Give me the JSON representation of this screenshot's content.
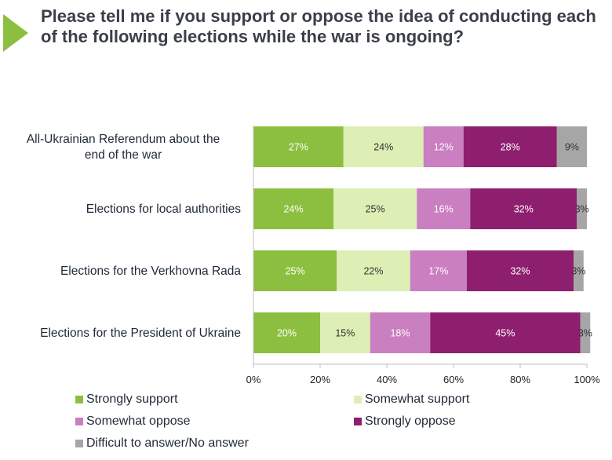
{
  "title": "Please tell me if you support or oppose the idea of conducting each of the following elections while the war is ongoing?",
  "chart_data": {
    "type": "bar",
    "orientation": "horizontal",
    "stacked": true,
    "normalized": true,
    "categories": [
      "All-Ukrainian Referendum about the end of the war",
      "Elections for local authorities",
      "Elections for the Verkhovna Rada",
      "Elections for the President of Ukraine"
    ],
    "category_label_lines": [
      [
        "All-Ukrainian Referendum about the",
        "end of the war"
      ],
      [
        "Elections for local authorities"
      ],
      [
        "Elections for the Verkhovna Rada"
      ],
      [
        "Elections for the President of Ukraine"
      ]
    ],
    "series": [
      {
        "name": "Strongly support",
        "color": "#8cbf3f",
        "label_color": "#ffffff",
        "values": [
          27,
          24,
          25,
          20
        ],
        "labels": [
          "27%",
          "24%",
          "25%",
          "20%"
        ]
      },
      {
        "name": "Somewhat support",
        "color": "#ddefb4",
        "label_color": "#333333",
        "values": [
          24,
          25,
          22,
          15
        ],
        "labels": [
          "24%",
          "25%",
          "22%",
          "15%"
        ]
      },
      {
        "name": "Somewhat oppose",
        "color": "#c97fc0",
        "label_color": "#ffffff",
        "values": [
          12,
          16,
          17,
          18
        ],
        "labels": [
          "12%",
          "16%",
          "17%",
          "18%"
        ]
      },
      {
        "name": "Strongly oppose",
        "color": "#8e1f6e",
        "label_color": "#ffffff",
        "values": [
          28,
          32,
          32,
          45
        ],
        "labels": [
          "28%",
          "32%",
          "32%",
          "45%"
        ]
      },
      {
        "name": "Difficult to answer/No answer",
        "color": "#a6a6a6",
        "label_color": "#333333",
        "values": [
          9,
          3,
          3,
          3
        ],
        "labels": [
          "9%",
          "3%",
          "3%",
          "3%"
        ]
      }
    ],
    "xlim": [
      0,
      100
    ],
    "xticks": [
      0,
      20,
      40,
      60,
      80,
      100
    ],
    "xtick_labels": [
      "0%",
      "20%",
      "40%",
      "60%",
      "80%",
      "100%"
    ],
    "xlabel": "",
    "ylabel": "",
    "legend_position": "bottom",
    "grid": false
  },
  "colors": {
    "title": "#3a3f4a",
    "accent_arrow": "#8cbf3f"
  }
}
